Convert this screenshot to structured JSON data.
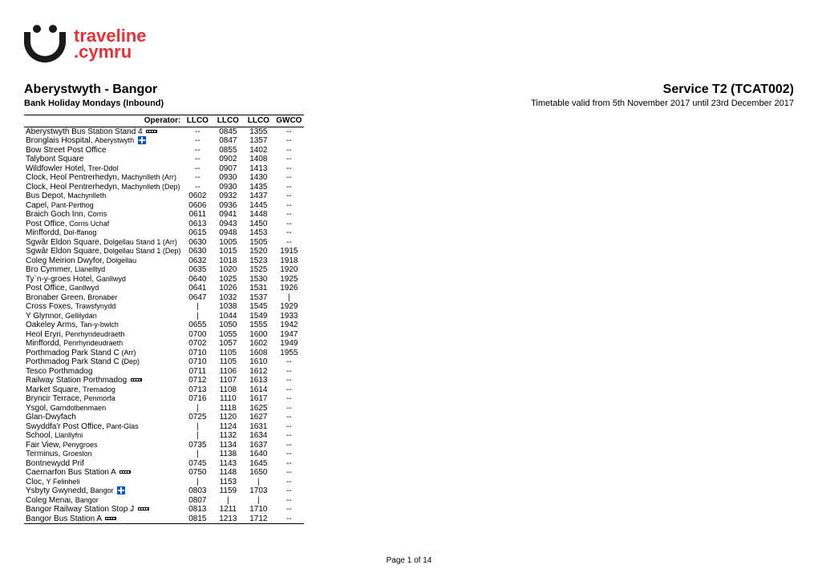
{
  "logo": {
    "text1": "traveline",
    "text2": ".cymru",
    "face_color": "#1a1a1a",
    "text_color": "#e73137"
  },
  "header": {
    "route": "Aberystwyth - Bangor",
    "service": "Service T2 (TCAT002)",
    "day": "Bank Holiday Mondays (Inbound)",
    "validity": "Timetable valid from 5th November 2017 until 23rd December 2017"
  },
  "operator_label": "Operator:",
  "operators": [
    "LLCO",
    "LLCO",
    "LLCO",
    "GWCO"
  ],
  "stops": [
    {
      "name": "Aberystwyth Bus Station Stand 4",
      "icon": "rail",
      "t": [
        "--",
        "0845",
        "1355",
        "--"
      ]
    },
    {
      "name": "Bronglais Hospital, ",
      "sub": "Aberystwyth",
      "icon": "hosp",
      "t": [
        "--",
        "0847",
        "1357",
        "--"
      ]
    },
    {
      "name": "Bow Street Post Office",
      "t": [
        "--",
        "0855",
        "1402",
        "--"
      ]
    },
    {
      "name": "Talybont Square",
      "t": [
        "--",
        "0902",
        "1408",
        "--"
      ]
    },
    {
      "name": "Wildfowler Hotel, ",
      "sub": "Trer-Ddol",
      "t": [
        "--",
        "0907",
        "1413",
        "--"
      ]
    },
    {
      "name": "Clock, Heol Pentrerhedyn, ",
      "sub": "Machynlleth (Arr)",
      "t": [
        "--",
        "0930",
        "1430",
        "--"
      ]
    },
    {
      "name": "Clock, Heol Pentrerhedyn, ",
      "sub": "Machynlleth (Dep)",
      "t": [
        "--",
        "0930",
        "1435",
        "--"
      ]
    },
    {
      "name": "Bus Depot, ",
      "sub": "Machynlleth",
      "t": [
        "0602",
        "0932",
        "1437",
        "--"
      ]
    },
    {
      "name": "Capel, ",
      "sub": "Pant-Perthog",
      "t": [
        "0606",
        "0936",
        "1445",
        "--"
      ]
    },
    {
      "name": "Braich Goch Inn, ",
      "sub": "Corris",
      "t": [
        "0611",
        "0941",
        "1448",
        "--"
      ]
    },
    {
      "name": "Post Office, ",
      "sub": "Corris Uchaf",
      "t": [
        "0613",
        "0943",
        "1450",
        "--"
      ]
    },
    {
      "name": "Minffordd, ",
      "sub": "Dol-ffanog",
      "t": [
        "0615",
        "0948",
        "1453",
        "--"
      ]
    },
    {
      "name": "Sgwâr Eldon Square, ",
      "sub": "Dolgellau Stand 1 (Arr)",
      "t": [
        "0630",
        "1005",
        "1505",
        "--"
      ]
    },
    {
      "name": "Sgwâr Eldon Square, ",
      "sub": "Dolgellau Stand 1 (Dep)",
      "t": [
        "0630",
        "1015",
        "1520",
        "1915"
      ]
    },
    {
      "name": "Coleg Meirion Dwyfor, ",
      "sub": "Dolgellau",
      "t": [
        "0632",
        "1018",
        "1523",
        "1918"
      ]
    },
    {
      "name": "Bro Cymmer, ",
      "sub": "Llanelltyd",
      "t": [
        "0635",
        "1020",
        "1525",
        "1920"
      ]
    },
    {
      "name": "Ty`n-y-groes Hotel, ",
      "sub": "Ganllwyd",
      "t": [
        "0640",
        "1025",
        "1530",
        "1925"
      ]
    },
    {
      "name": "Post Office, ",
      "sub": "Ganllwyd",
      "t": [
        "0641",
        "1026",
        "1531",
        "1926"
      ]
    },
    {
      "name": "Bronaber Green, ",
      "sub": "Bronaber",
      "t": [
        "0647",
        "1032",
        "1537",
        "|"
      ]
    },
    {
      "name": "Cross Foxes, ",
      "sub": "Trawsfynydd",
      "t": [
        "|",
        "1038",
        "1545",
        "1929"
      ]
    },
    {
      "name": "Y Glynnor, ",
      "sub": "Gellilydan",
      "t": [
        "|",
        "1044",
        "1549",
        "1933"
      ]
    },
    {
      "name": "Oakeley Arms, ",
      "sub": "Tan-y-bwlch",
      "t": [
        "0655",
        "1050",
        "1555",
        "1942"
      ]
    },
    {
      "name": "Heol Eryri, ",
      "sub": "Penrhyndeudraeth",
      "t": [
        "0700",
        "1055",
        "1600",
        "1947"
      ]
    },
    {
      "name": "Minffordd, ",
      "sub": "Penrhyndeudraeth",
      "t": [
        "0702",
        "1057",
        "1602",
        "1949"
      ]
    },
    {
      "name": "Porthmadog Park Stand C ",
      "sub": "(Arr)",
      "t": [
        "0710",
        "1105",
        "1608",
        "1955"
      ]
    },
    {
      "name": "Porthmadog Park Stand C ",
      "sub": "(Dep)",
      "t": [
        "0710",
        "1105",
        "1610",
        "--"
      ]
    },
    {
      "name": "Tesco Porthmadog",
      "t": [
        "0711",
        "1106",
        "1612",
        "--"
      ]
    },
    {
      "name": "Railway Station Porthmadog",
      "icon": "rail",
      "t": [
        "0712",
        "1107",
        "1613",
        "--"
      ]
    },
    {
      "name": "Market Square, ",
      "sub": "Tremadog",
      "t": [
        "0713",
        "1108",
        "1614",
        "--"
      ]
    },
    {
      "name": "Bryncir Terrace, ",
      "sub": "Penmorfa",
      "t": [
        "0716",
        "1110",
        "1617",
        "--"
      ]
    },
    {
      "name": "Ysgol, ",
      "sub": "Garndolbenmaen",
      "t": [
        "|",
        "1118",
        "1625",
        "--"
      ]
    },
    {
      "name": "Glan-Dwyfach",
      "t": [
        "0725",
        "1120",
        "1627",
        "--"
      ]
    },
    {
      "name": "Swyddfa'r Post Office, ",
      "sub": "Pant-Glas",
      "t": [
        "|",
        "1124",
        "1631",
        "--"
      ]
    },
    {
      "name": "School, ",
      "sub": "Llanllyfni",
      "t": [
        "|",
        "1132",
        "1634",
        "--"
      ]
    },
    {
      "name": "Fair View, ",
      "sub": "Penygroes",
      "t": [
        "0735",
        "1134",
        "1637",
        "--"
      ]
    },
    {
      "name": "Terminus, ",
      "sub": "Groeslon",
      "t": [
        "|",
        "1138",
        "1640",
        "--"
      ]
    },
    {
      "name": "Bontnewydd Prif",
      "t": [
        "0745",
        "1143",
        "1645",
        "--"
      ]
    },
    {
      "name": "Caernarfon Bus Station A",
      "icon": "rail",
      "t": [
        "0750",
        "1148",
        "1650",
        "--"
      ]
    },
    {
      "name": "Cloc, ",
      "sub": "Y Felinheli",
      "t": [
        "|",
        "1153",
        "|",
        "--"
      ]
    },
    {
      "name": "Ysbyty Gwynedd, ",
      "sub": "Bangor",
      "icon": "hosp",
      "t": [
        "0803",
        "1159",
        "1703",
        "--"
      ]
    },
    {
      "name": "Coleg Menai, ",
      "sub": "Bangor",
      "t": [
        "0807",
        "|",
        "|",
        "--"
      ]
    },
    {
      "name": "Bangor Railway Station Stop J",
      "icon": "rail",
      "t": [
        "0813",
        "1211",
        "1710",
        "--"
      ]
    },
    {
      "name": "Bangor Bus Station A",
      "icon": "rail",
      "t": [
        "0815",
        "1213",
        "1712",
        "--"
      ],
      "last": true
    }
  ],
  "footer": "Page 1 of 14"
}
